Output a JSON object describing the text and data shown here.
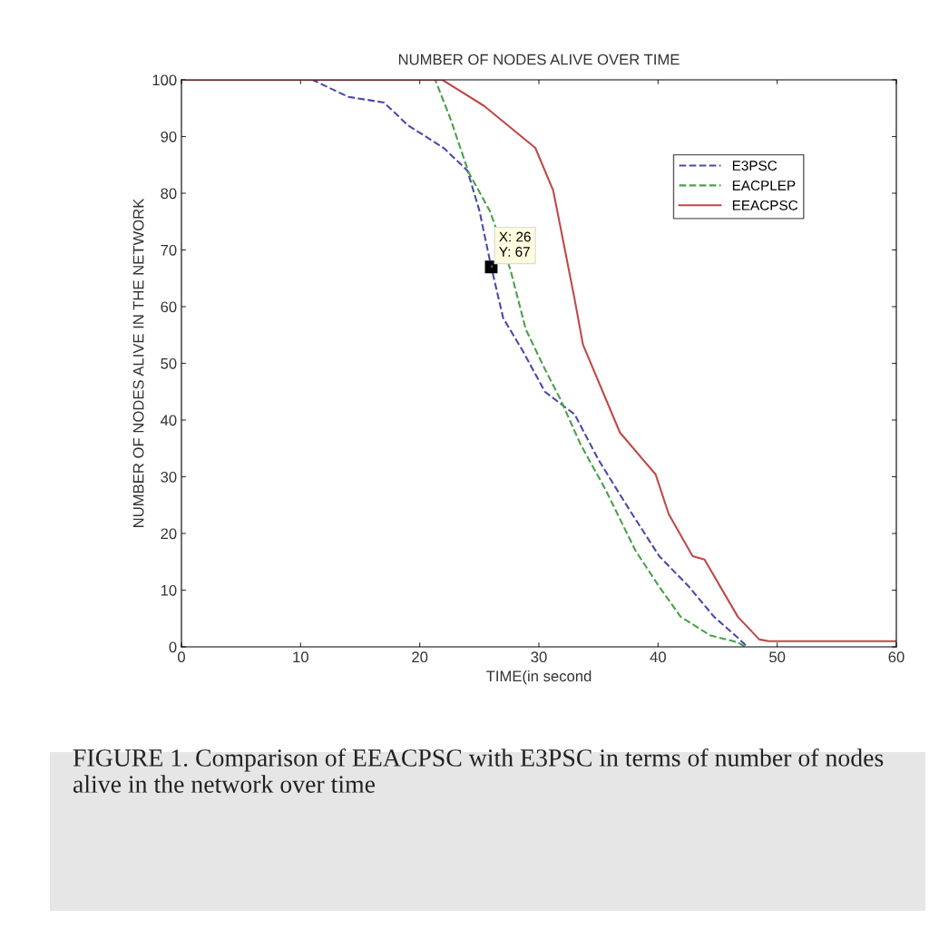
{
  "chart_data": {
    "type": "line",
    "title": "NUMBER OF NODES ALIVE OVER TIME",
    "xlabel": "TIME(in second",
    "ylabel": "NUMBER OF NODES ALIVE IN THE NETWORK",
    "xlim": [
      0,
      60
    ],
    "ylim": [
      0,
      100
    ],
    "xticks": [
      0,
      10,
      20,
      30,
      40,
      50,
      60
    ],
    "yticks": [
      0,
      10,
      20,
      30,
      40,
      50,
      60,
      70,
      80,
      90,
      100
    ],
    "grid": false,
    "legend": "top right",
    "marker": "none",
    "series": [
      {
        "name": "E3PSC",
        "color": "#4a4aa8",
        "line_style": "dashed",
        "x": [
          0,
          11,
          14,
          17,
          19,
          22,
          24,
          25,
          26,
          27,
          28.7,
          30.5,
          33,
          35,
          37.5,
          40.1,
          42.6,
          44.7,
          46.7,
          47.5
        ],
        "values": [
          100,
          100,
          97,
          96,
          92,
          88,
          84,
          77,
          67,
          58,
          52,
          45,
          41,
          33,
          24.5,
          16,
          10.6,
          5.3,
          1.6,
          0
        ]
      },
      {
        "name": "EACPLEP",
        "color": "#4aa04a",
        "line_style": "dashed",
        "x": [
          0,
          21.3,
          22.6,
          24.1,
          25.9,
          27.6,
          28.9,
          30.5,
          31.8,
          33.5,
          35.6,
          38.1,
          40.1,
          41.9,
          44.4,
          46.7,
          47.3
        ],
        "values": [
          100,
          100,
          93,
          83.7,
          76.8,
          66.6,
          56,
          49,
          43.7,
          35.7,
          27.7,
          17,
          10.6,
          5.3,
          2,
          0.8,
          0
        ]
      },
      {
        "name": "EEACPSC",
        "color": "#c04848",
        "line_style": "solid",
        "x": [
          0,
          21.9,
          25.4,
          29.7,
          31.2,
          32,
          33,
          33.7,
          36.8,
          39.8,
          40.9,
          42.9,
          43.9,
          46.7,
          48.5,
          49.3,
          60
        ],
        "values": [
          100,
          100,
          95.4,
          88,
          80.5,
          72,
          61.3,
          53.3,
          37.8,
          30.4,
          23.4,
          16,
          15.4,
          5.3,
          1.3,
          1,
          1
        ]
      }
    ],
    "annotations": [
      {
        "text": "X: 26\nY: 67",
        "x": 26,
        "y": 67
      },
      "FIGURE 1. Comparison of EEACPSC with E3PSC in terms of number of nodes alive in the network over time"
    ]
  }
}
